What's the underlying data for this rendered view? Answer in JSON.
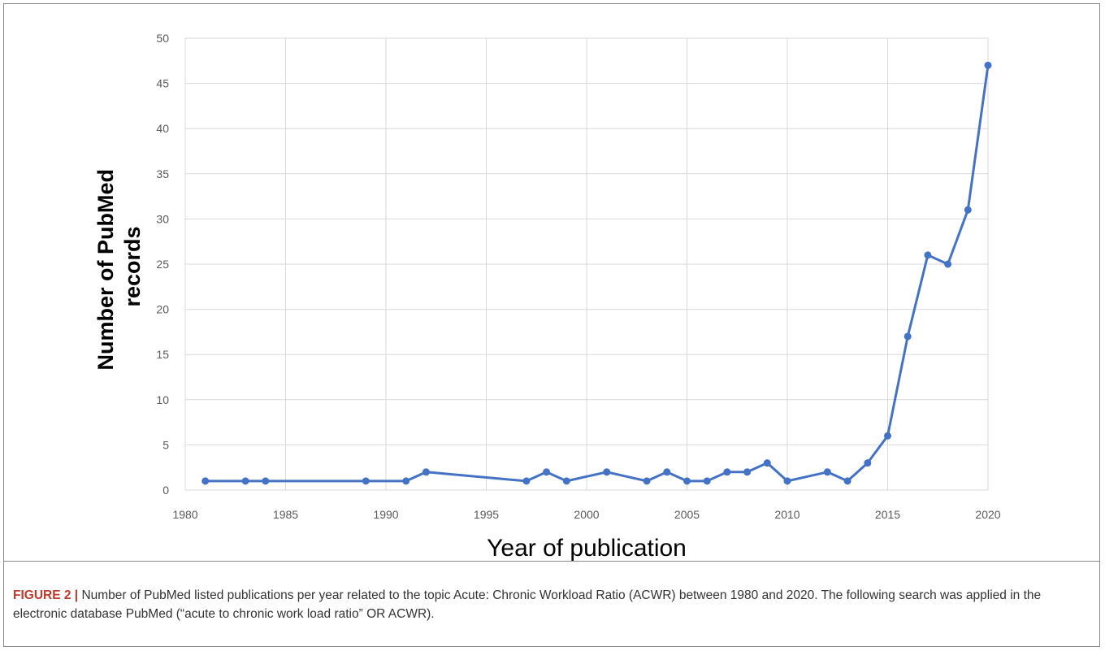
{
  "chart_data": {
    "type": "line",
    "title": "",
    "xlabel": "Year of publication",
    "ylabel_lines": [
      "Number of PubMed",
      "records"
    ],
    "xlim": [
      1980,
      2020
    ],
    "ylim": [
      0,
      50
    ],
    "x_ticks": [
      1980,
      1985,
      1990,
      1995,
      2000,
      2005,
      2010,
      2015,
      2020
    ],
    "y_ticks": [
      0,
      5,
      10,
      15,
      20,
      25,
      30,
      35,
      40,
      45,
      50
    ],
    "grid": true,
    "legend": "none",
    "series": [
      {
        "color": "#4472c4",
        "x": [
          1981,
          1983,
          1984,
          1989,
          1991,
          1992,
          1997,
          1998,
          1999,
          2001,
          2003,
          2004,
          2005,
          2006,
          2007,
          2008,
          2009,
          2010,
          2012,
          2013,
          2014,
          2015,
          2016,
          2017,
          2018,
          2019,
          2020
        ],
        "y": [
          1,
          1,
          1,
          1,
          1,
          2,
          1,
          2,
          1,
          2,
          1,
          2,
          1,
          1,
          2,
          2,
          3,
          1,
          2,
          1,
          3,
          6,
          17,
          26,
          25,
          31,
          47
        ]
      }
    ]
  },
  "caption": {
    "label": "FIGURE 2 |",
    "text": " Number of PubMed listed publications per year related to the topic Acute: Chronic Workload Ratio (ACWR) between 1980 and 2020. The following search was applied in the electronic database PubMed (“acute to chronic work load ratio” OR ACWR)."
  }
}
